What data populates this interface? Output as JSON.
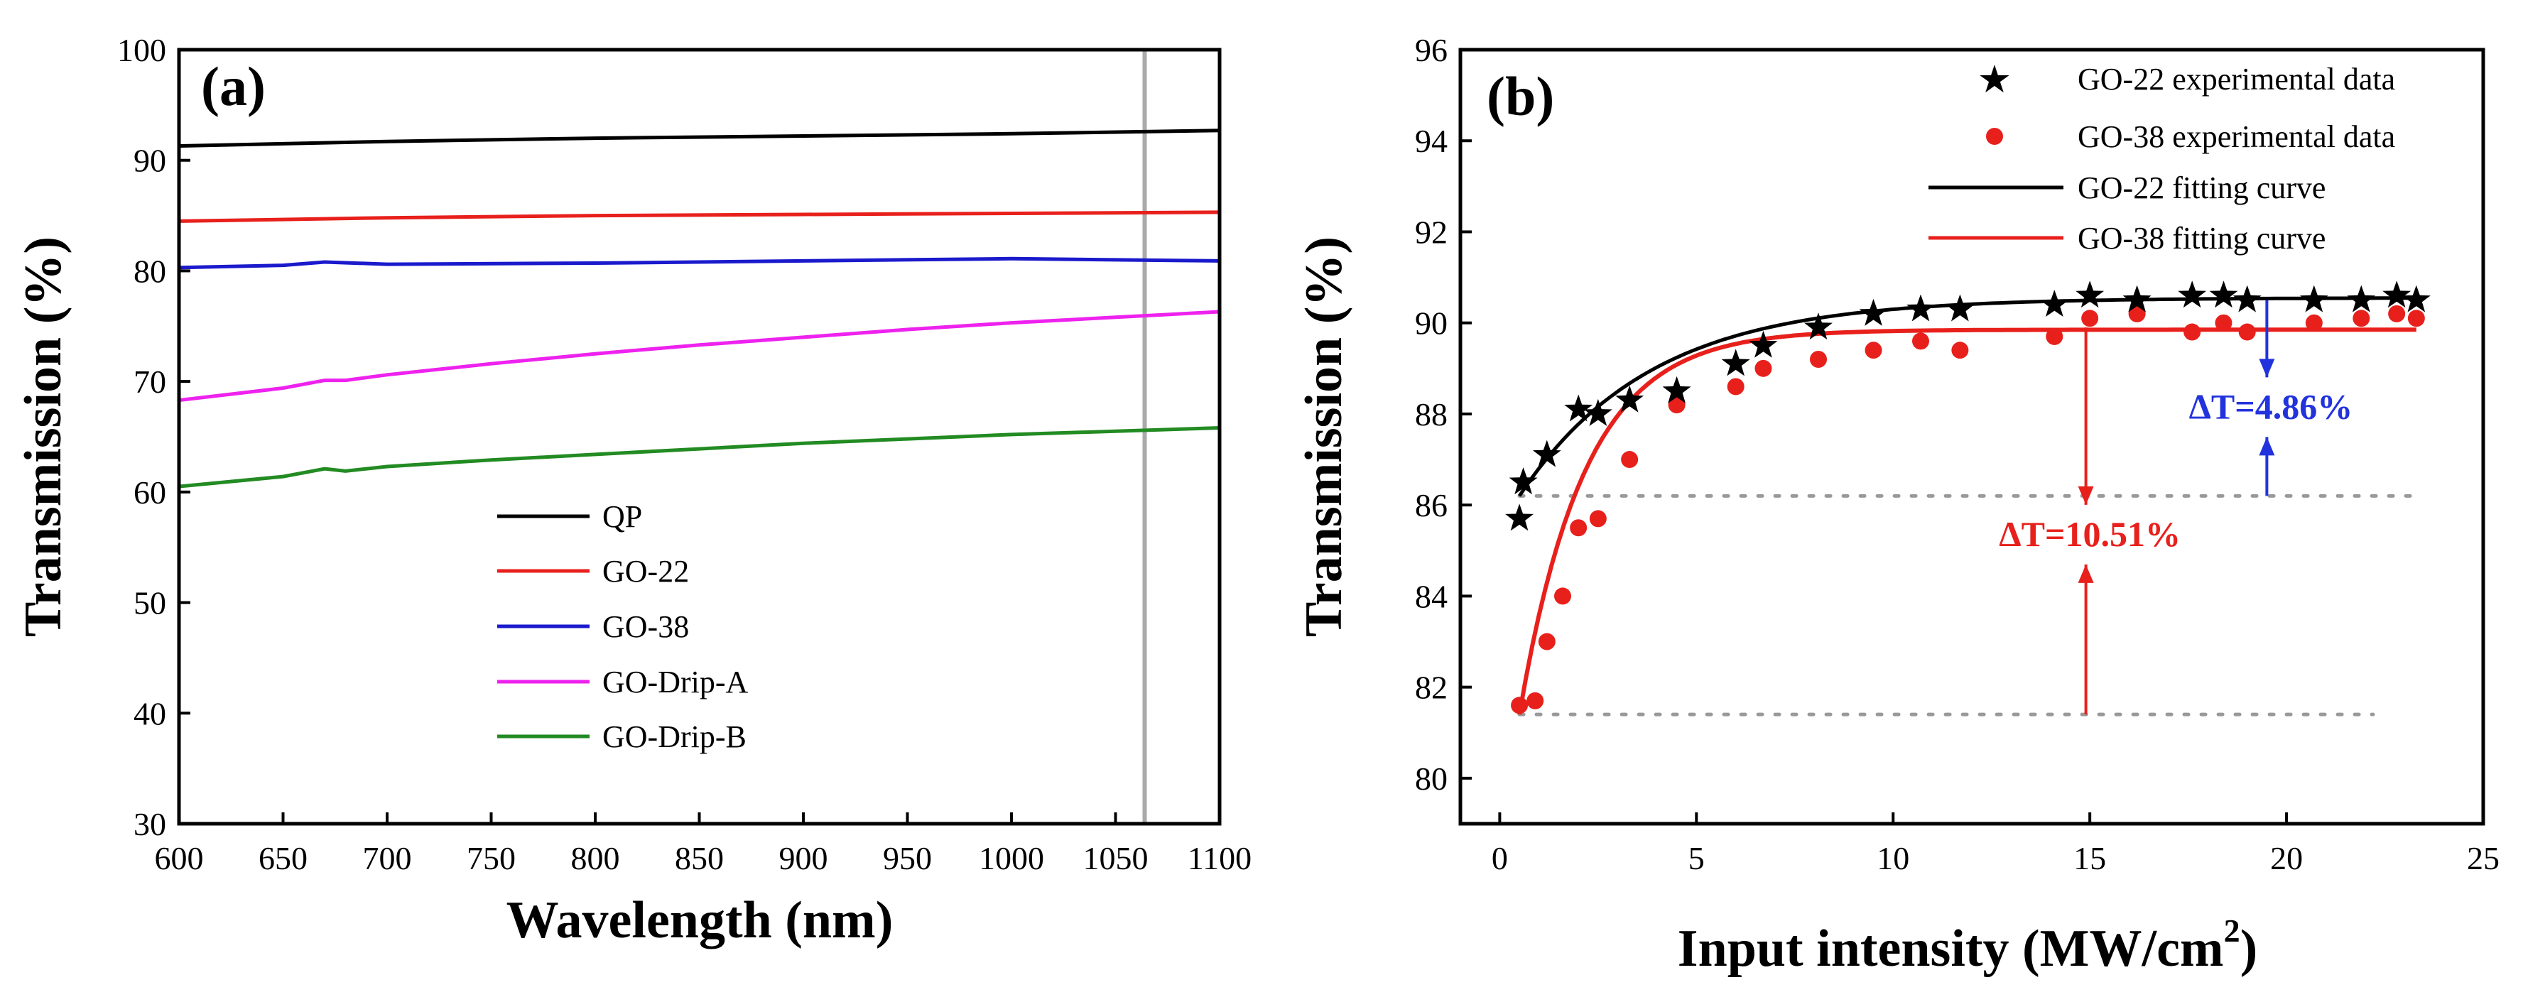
{
  "colors": {
    "black": "#000000",
    "red": "#e8201c",
    "blue": "#1a1acc",
    "magenta": "#ee22ee",
    "green": "#228b22",
    "annot_blue": "#2233dd",
    "marker_line": "#aaaaaa",
    "dotted": "#999999"
  },
  "chart_data": [
    {
      "type": "line",
      "panel_label": "(a)",
      "xlabel": "Wavelength (nm)",
      "ylabel": "Transmission (%)",
      "xlim": [
        600,
        1100
      ],
      "ylim": [
        30,
        100
      ],
      "xticks": [
        600,
        650,
        700,
        750,
        800,
        850,
        900,
        950,
        1000,
        1050,
        1100
      ],
      "yticks": [
        30,
        40,
        50,
        60,
        70,
        80,
        90,
        100
      ],
      "reference_line_x": 1064,
      "legend_position": "center-bottom",
      "series": [
        {
          "name": "QP",
          "color": "black",
          "x": [
            600,
            700,
            800,
            900,
            1000,
            1100
          ],
          "y": [
            91.3,
            91.7,
            92.0,
            92.2,
            92.4,
            92.7
          ]
        },
        {
          "name": "GO-22",
          "color": "red",
          "x": [
            600,
            700,
            800,
            900,
            1000,
            1100
          ],
          "y": [
            84.5,
            84.8,
            85.0,
            85.1,
            85.2,
            85.3
          ]
        },
        {
          "name": "GO-38",
          "color": "blue",
          "x": [
            600,
            650,
            670,
            700,
            800,
            900,
            1000,
            1100
          ],
          "y": [
            80.3,
            80.5,
            80.8,
            80.6,
            80.7,
            80.9,
            81.1,
            80.9
          ]
        },
        {
          "name": "GO-Drip-A",
          "color": "magenta",
          "x": [
            600,
            650,
            670,
            680,
            700,
            750,
            800,
            850,
            900,
            950,
            1000,
            1050,
            1100
          ],
          "y": [
            68.3,
            69.4,
            70.1,
            70.1,
            70.6,
            71.6,
            72.5,
            73.3,
            74.0,
            74.7,
            75.3,
            75.8,
            76.3
          ]
        },
        {
          "name": "GO-Drip-B",
          "color": "green",
          "x": [
            600,
            650,
            670,
            680,
            700,
            750,
            800,
            850,
            900,
            950,
            1000,
            1050,
            1100
          ],
          "y": [
            60.5,
            61.4,
            62.1,
            61.9,
            62.3,
            62.9,
            63.4,
            63.9,
            64.4,
            64.8,
            65.2,
            65.5,
            65.8
          ]
        }
      ]
    },
    {
      "type": "scatter",
      "panel_label": "(b)",
      "xlabel_main": "Input intensity (MW/cm",
      "xlabel_sup": "2",
      "xlabel_end": ")",
      "ylabel": "Transmission (%)",
      "xlim": [
        -1,
        25
      ],
      "ylim": [
        79,
        96
      ],
      "xticks": [
        0,
        5,
        10,
        15,
        20,
        25
      ],
      "yticks": [
        80,
        82,
        84,
        86,
        88,
        90,
        92,
        94,
        96
      ],
      "legend_position": "top-right",
      "legend": [
        {
          "label": "GO-22 experimental data",
          "kind": "star",
          "color": "black"
        },
        {
          "label": "GO-38 experimental data",
          "kind": "dot",
          "color": "red"
        },
        {
          "label": "GO-22 fitting curve",
          "kind": "line",
          "color": "black"
        },
        {
          "label": "GO-38 fitting curve",
          "kind": "line",
          "color": "red"
        }
      ],
      "go22_points": {
        "x": [
          0.5,
          0.6,
          1.2,
          2.0,
          2.5,
          3.3,
          4.5,
          6.0,
          6.7,
          8.1,
          9.5,
          10.7,
          11.7,
          14.1,
          15.0,
          16.2,
          17.6,
          18.4,
          19.0,
          20.7,
          21.9,
          22.8,
          23.3
        ],
        "y": [
          85.7,
          86.5,
          87.1,
          88.1,
          88.0,
          88.3,
          88.5,
          89.1,
          89.5,
          89.9,
          90.2,
          90.3,
          90.3,
          90.4,
          90.6,
          90.5,
          90.6,
          90.6,
          90.5,
          90.5,
          90.5,
          90.6,
          90.5
        ]
      },
      "go38_points": {
        "x": [
          0.5,
          0.9,
          1.2,
          1.6,
          2.0,
          2.5,
          3.3,
          4.5,
          6.0,
          6.7,
          8.1,
          9.5,
          10.7,
          11.7,
          14.1,
          15.0,
          16.2,
          17.6,
          18.4,
          19.0,
          20.7,
          21.9,
          22.8,
          23.3
        ],
        "y": [
          81.6,
          81.7,
          83.0,
          84.0,
          85.5,
          85.7,
          87.0,
          88.2,
          88.6,
          89.0,
          89.2,
          89.4,
          89.6,
          89.4,
          89.7,
          90.1,
          90.2,
          89.8,
          90.0,
          89.8,
          90.0,
          90.1,
          90.2,
          90.1
        ]
      },
      "go22_fit": {
        "plateau": 90.55,
        "start": 86.2,
        "x0": 0.5,
        "rate": 0.3,
        "x_end": 23.3
      },
      "go38_fit": {
        "plateau": 89.85,
        "start": 81.4,
        "x0": 0.5,
        "rate": 0.6,
        "x_end": 23.3
      },
      "dotted_levels": [
        {
          "y": 86.2,
          "x_start": 0.5,
          "x_end": 23.3
        },
        {
          "y": 81.4,
          "x_start": 0.5,
          "x_end": 22.2
        }
      ],
      "annotations": [
        {
          "text": "ΔT=4.86%",
          "color": "annot_blue",
          "x": 19.6,
          "y": 87.9,
          "arrow_x": 19.5,
          "from_low": 86.2,
          "to_high": 90.5
        },
        {
          "text": "ΔT=10.51%",
          "color": "red",
          "x": 15.0,
          "y": 85.1,
          "arrow_x": 14.9,
          "from_low": 81.4,
          "to_high": 89.9
        }
      ]
    }
  ]
}
